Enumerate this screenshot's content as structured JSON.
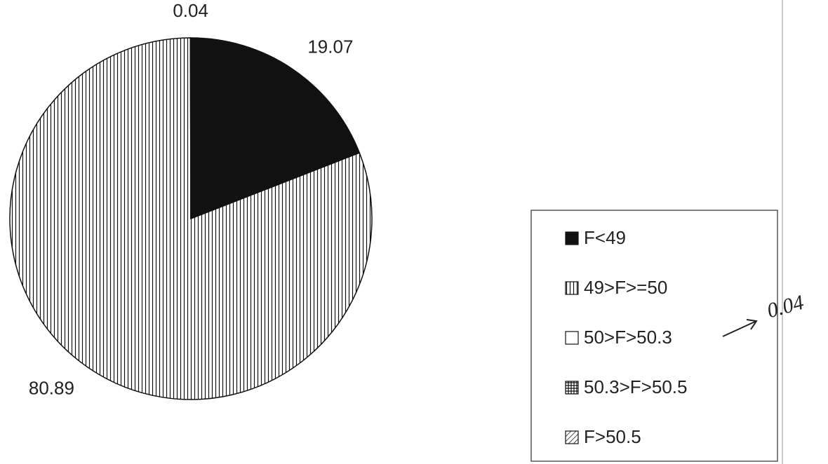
{
  "chart_data": {
    "type": "pie",
    "categories": [
      "F<49",
      "49>F>=50",
      "50>F>50.3",
      "50.3>F>50.5",
      "F>50.5"
    ],
    "values": [
      19.07,
      80.89,
      0.04,
      0,
      0
    ],
    "patterns": [
      "solid",
      "vertical",
      "none",
      "grid",
      "diagonal"
    ],
    "color": "#111111",
    "legend": "right",
    "annotation": "0.04"
  }
}
